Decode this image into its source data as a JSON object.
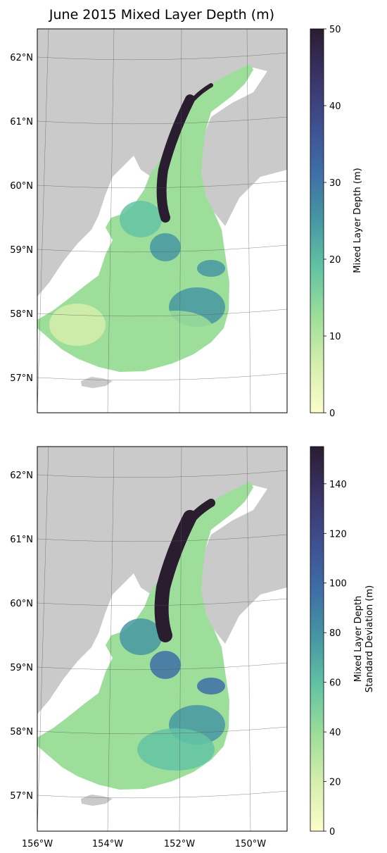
{
  "figure": {
    "title": "June 2015 Mixed Layer Depth (m)"
  },
  "colors": {
    "land": "#cacaca",
    "ocean_blank": "#ffffff",
    "grid": "#555555",
    "colormap": [
      "#fdfdcc",
      "#d6efac",
      "#9dde9a",
      "#64c4a3",
      "#4698a2",
      "#3e6fa6",
      "#3f4f90",
      "#3a3467",
      "#2a1d2f"
    ]
  },
  "chart_data": [
    {
      "type": "heatmap",
      "variable": "mixed layer depth",
      "title": "June 2015 Mixed Layer Depth (m)",
      "x_ticks": [
        "156°W",
        "154°W",
        "152°W",
        "150°W"
      ],
      "x_tick_labels_shown": false,
      "y_ticks": [
        "57°N",
        "58°N",
        "59°N",
        "60°N",
        "61°N",
        "62°N"
      ],
      "lon_range": [
        -156,
        -149
      ],
      "lat_range": [
        56,
        62
      ],
      "colorbar": {
        "label": "Mixed Layer Depth (m)",
        "range": [
          0,
          50
        ],
        "ticks": [
          0,
          10,
          20,
          30,
          40,
          50
        ]
      },
      "grid": true
    },
    {
      "type": "heatmap",
      "variable": "mixed layer depth standard deviation",
      "title": "",
      "x_ticks": [
        "156°W",
        "154°W",
        "152°W",
        "150°W"
      ],
      "x_tick_labels_shown": true,
      "y_ticks": [
        "57°N",
        "58°N",
        "59°N",
        "60°N",
        "61°N",
        "62°N"
      ],
      "lon_range": [
        -156,
        -149
      ],
      "lat_range": [
        56,
        62
      ],
      "colorbar": {
        "label_line1": "Mixed Layer Depth",
        "label_line2": "Standard Deviation (m)",
        "range": [
          0,
          155
        ],
        "ticks": [
          0,
          20,
          40,
          60,
          80,
          100,
          120,
          140
        ]
      },
      "grid": true
    }
  ]
}
